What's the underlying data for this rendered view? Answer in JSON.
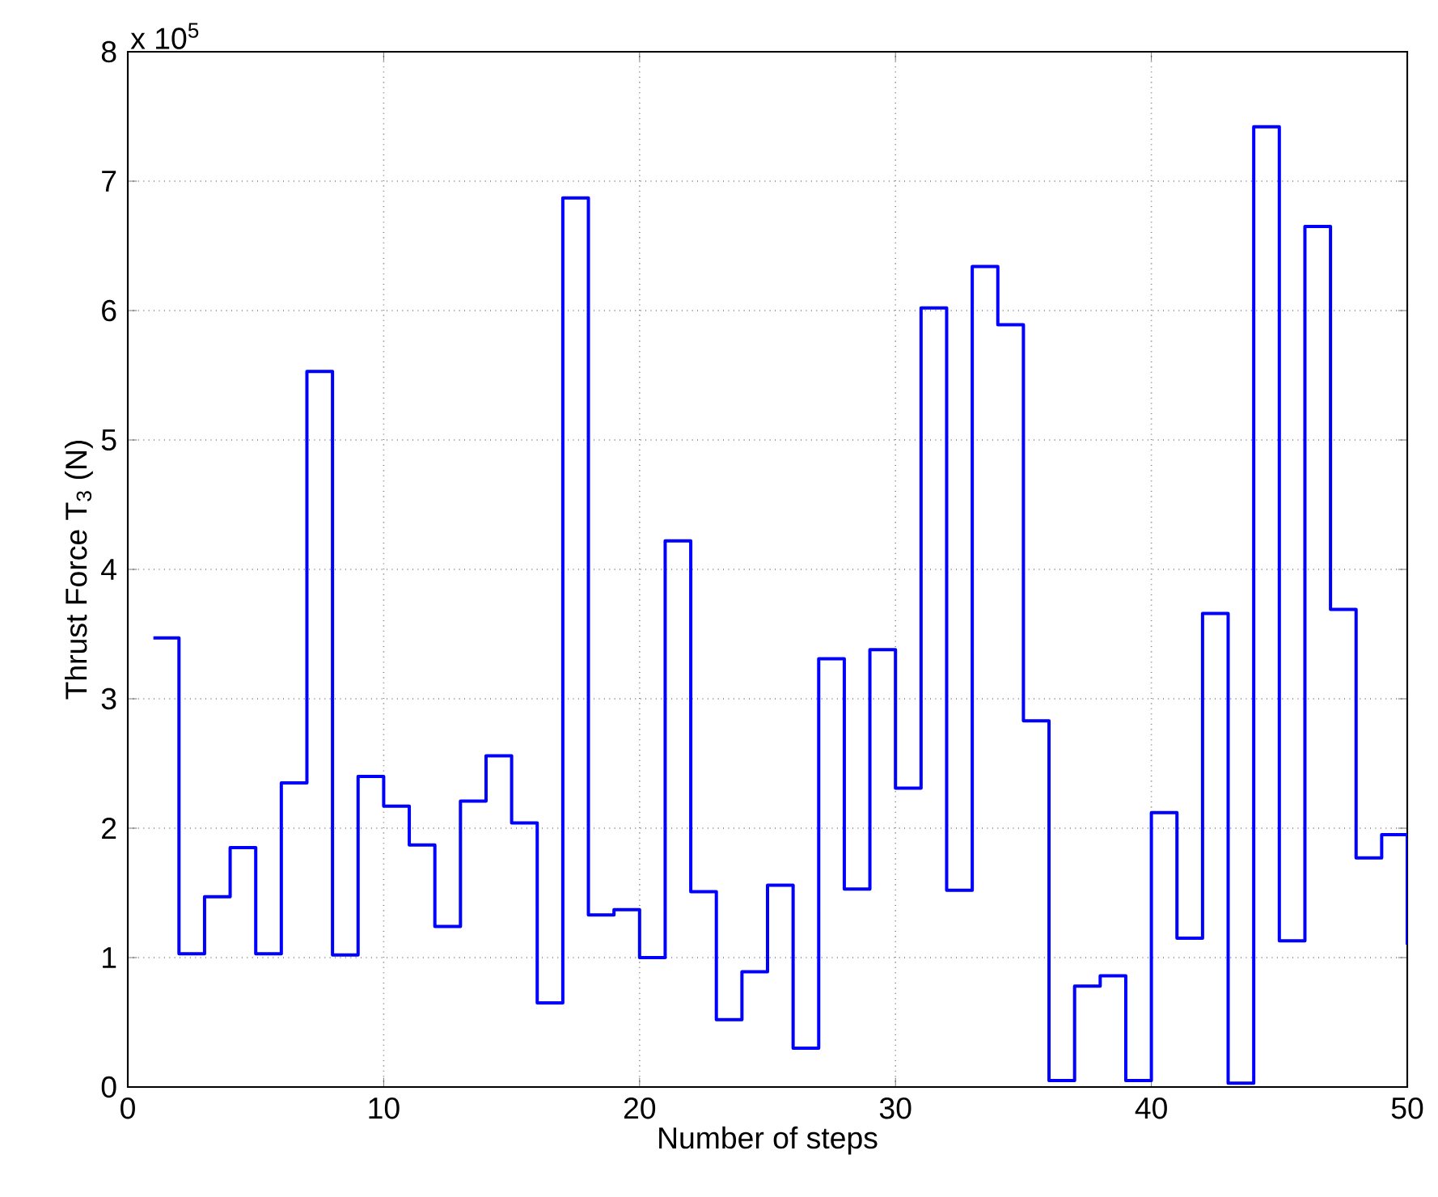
{
  "chart_data": {
    "type": "step",
    "xlabel": "Number of steps",
    "ylabel": "Thrust Force T$_{3}$ (N)",
    "annotations": [
      "x 10$^{5}$"
    ],
    "x": [
      1,
      2,
      3,
      4,
      5,
      6,
      7,
      8,
      9,
      10,
      11,
      12,
      13,
      14,
      15,
      16,
      17,
      18,
      19,
      20,
      21,
      22,
      23,
      24,
      25,
      26,
      27,
      28,
      29,
      30,
      31,
      32,
      33,
      34,
      35,
      36,
      37,
      38,
      39,
      40,
      41,
      42,
      43,
      44,
      45,
      46,
      47,
      48,
      49,
      50
    ],
    "series": [
      {
        "color": "#0000ff",
        "values": [
          3.47,
          1.03,
          1.47,
          1.85,
          1.03,
          2.35,
          5.53,
          1.02,
          2.4,
          2.17,
          1.87,
          1.24,
          2.21,
          2.56,
          2.04,
          0.65,
          6.87,
          1.33,
          1.37,
          1.0,
          4.22,
          1.51,
          0.52,
          0.89,
          1.56,
          0.3,
          3.31,
          1.53,
          3.38,
          2.31,
          6.02,
          1.52,
          6.34,
          5.89,
          2.83,
          0.05,
          0.78,
          0.86,
          0.05,
          2.12,
          1.15,
          3.66,
          0.03,
          7.42,
          1.13,
          6.65,
          3.69,
          1.77,
          1.95,
          1.1
        ]
      }
    ],
    "xlim": [
      0,
      50
    ],
    "ylim": [
      0,
      8
    ],
    "xticks": [
      0,
      10,
      20,
      30,
      40,
      50
    ],
    "yticks": [
      0,
      1,
      2,
      3,
      4,
      5,
      6,
      7,
      8
    ],
    "grid": true
  }
}
